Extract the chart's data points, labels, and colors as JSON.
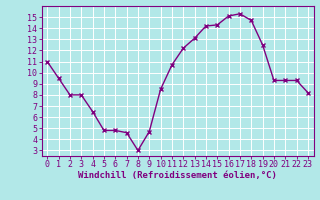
{
  "x": [
    0,
    1,
    2,
    3,
    4,
    5,
    6,
    7,
    8,
    9,
    10,
    11,
    12,
    13,
    14,
    15,
    16,
    17,
    18,
    19,
    20,
    21,
    22,
    23
  ],
  "y": [
    11,
    9.5,
    8,
    8,
    6.5,
    4.8,
    4.8,
    4.6,
    3.0,
    4.7,
    8.5,
    10.7,
    12.2,
    13.1,
    14.2,
    14.3,
    15.1,
    15.3,
    14.7,
    12.5,
    9.3,
    9.3,
    9.3,
    8.2
  ],
  "line_color": "#800080",
  "marker": "x",
  "marker_color": "#800080",
  "bg_color": "#b2e8e8",
  "grid_color": "#ffffff",
  "xlabel": "Windchill (Refroidissement éolien,°C)",
  "xlabel_color": "#800080",
  "tick_color": "#800080",
  "xlim": [
    -0.5,
    23.5
  ],
  "ylim": [
    2.5,
    16.0
  ],
  "yticks": [
    3,
    4,
    5,
    6,
    7,
    8,
    9,
    10,
    11,
    12,
    13,
    14,
    15
  ],
  "xticks": [
    0,
    1,
    2,
    3,
    4,
    5,
    6,
    7,
    8,
    9,
    10,
    11,
    12,
    13,
    14,
    15,
    16,
    17,
    18,
    19,
    20,
    21,
    22,
    23
  ],
  "spine_color": "#800080",
  "linewidth": 1.0,
  "markersize": 3,
  "tick_fontsize": 6,
  "xlabel_fontsize": 6.5
}
